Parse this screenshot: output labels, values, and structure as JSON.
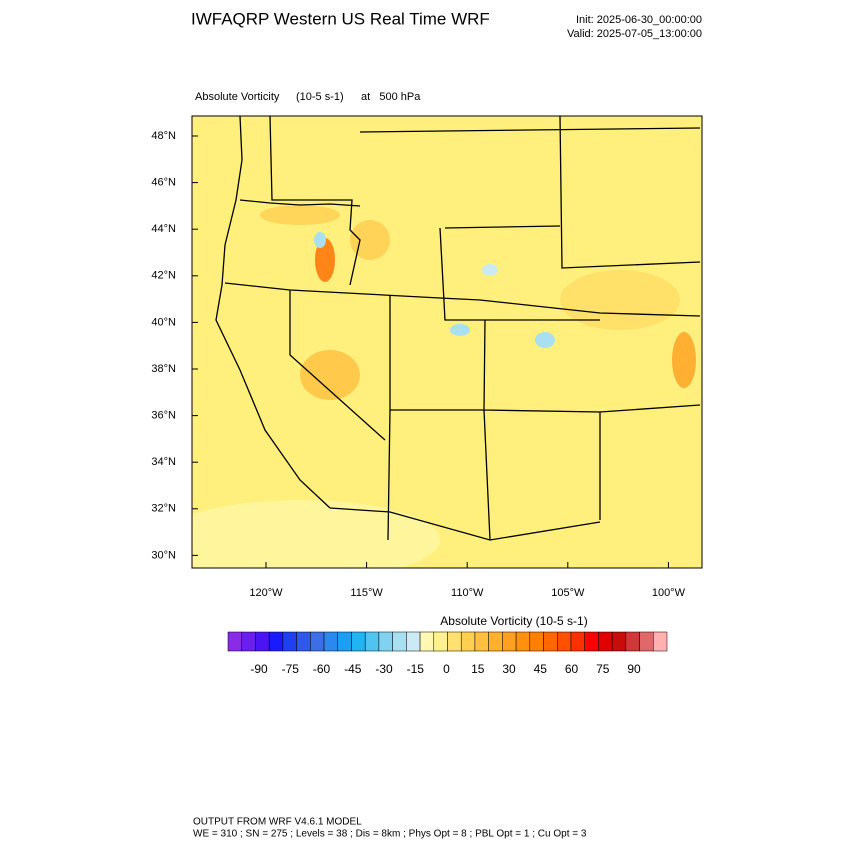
{
  "header": {
    "title": "IWFAQRP Western US Real Time WRF",
    "init": "Init: 2025-06-30_00:00:00",
    "valid": "Valid: 2025-07-05_13:00:00"
  },
  "map": {
    "field": "Absolute Vorticity",
    "units": "(10-5 s-1)",
    "level": "at   500 hPa",
    "lat_labels": [
      "48°N",
      "46°N",
      "44°N",
      "42°N",
      "40°N",
      "38°N",
      "36°N",
      "34°N",
      "32°N",
      "30°N"
    ],
    "lon_labels": [
      "120°W",
      "115°W",
      "110°W",
      "105°W",
      "100°W"
    ]
  },
  "colorbar": {
    "title": "Absolute Vorticity  (10-5 s-1)",
    "labels": [
      "-90",
      "-75",
      "-60",
      "-45",
      "-30",
      "-15",
      "0",
      "15",
      "30",
      "45",
      "60",
      "75",
      "90"
    ],
    "colors": [
      "#8a2be6",
      "#6a1ff0",
      "#4a14f5",
      "#1a1aff",
      "#2040f0",
      "#3058e6",
      "#3c6ee6",
      "#2a88ee",
      "#1aa0f2",
      "#20b4f2",
      "#50c4f0",
      "#80d2f0",
      "#a8e0f2",
      "#cceaf4",
      "#fff8b0",
      "#fff090",
      "#ffe070",
      "#ffd050",
      "#ffc040",
      "#ffb030",
      "#ffa020",
      "#ff9010",
      "#ff8000",
      "#ff6800",
      "#ff5000",
      "#ff3000",
      "#ff0000",
      "#e00000",
      "#c80c0c",
      "#d03838",
      "#e06868",
      "#ffb0b0"
    ]
  },
  "footer": {
    "model": "OUTPUT FROM WRF V4.6.1 MODEL",
    "settings": "WE = 310 ; SN = 275 ; Levels = 38 ; Dis = 8km ; Phys Opt = 8 ; PBL Opt = 1 ; Cu Opt = 3"
  }
}
